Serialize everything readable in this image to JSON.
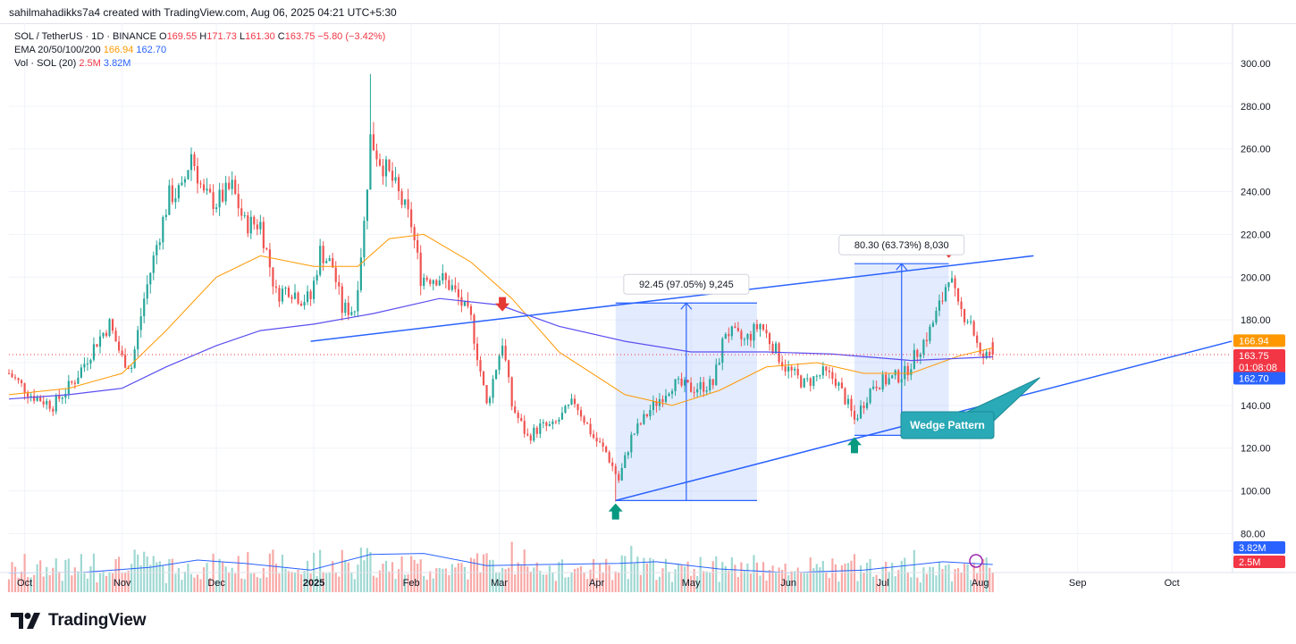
{
  "header": {
    "created_by": "sahilmahadikks7a4 created with TradingView.com, Aug 06, 2025 04:21 UTC+5:30"
  },
  "legend": {
    "symbol": "SOL / TetherUS · 1D · BINANCE",
    "open_label": "O",
    "open": "169.55",
    "high_label": "H",
    "high": "171.73",
    "low_label": "L",
    "low": "161.30",
    "close_label": "C",
    "close": "163.75",
    "change": "−5.80 (−3.42%)",
    "ema_label": "EMA 20/50/100/200",
    "ema_50": "166.94",
    "ema_200": "162.70",
    "vol_label": "Vol · SOL (20)",
    "vol_value": "2.5M",
    "vol_ma": "3.82M"
  },
  "badges": {
    "ema50": "166.94",
    "price": "163.75",
    "countdown": "01:08:08",
    "ema200": "162.70",
    "vol_ma": "3.82M",
    "vol": "2.5M"
  },
  "annotations": {
    "measure1": "92.45 (97.05%) 9,245",
    "measure2": "80.30 (63.73%) 8,030",
    "pattern_label": "Wedge Pattern"
  },
  "footer": {
    "brand": "TradingView"
  },
  "colors": {
    "up": "#26a69a",
    "down": "#ef5350",
    "ema50": "#ff9800",
    "ema200": "#5b4ff0",
    "trend": "#2962ff",
    "label_box": "#2aa9b6"
  },
  "chart_data": {
    "type": "candlestick",
    "title": "SOL / TetherUS · 1D · BINANCE",
    "y_ticks": [
      80,
      100,
      120,
      140,
      160,
      180,
      200,
      220,
      240,
      260,
      280,
      300
    ],
    "y_tick_labels": [
      "80.00",
      "100.00",
      "120.00",
      "140.00",
      "160.00",
      "180.00",
      "200.00",
      "220.00",
      "240.00",
      "260.00",
      "280.00",
      "300.00"
    ],
    "ylim": [
      71,
      305
    ],
    "x_tick_labels": [
      "Oct",
      "Nov",
      "Dec",
      "2025",
      "Feb",
      "Mar",
      "Apr",
      "May",
      "Jun",
      "Jul",
      "Aug",
      "Sep",
      "Oct"
    ],
    "x_tick_dates": [
      "2024-10-01",
      "2024-11-01",
      "2024-12-01",
      "2025-01-01",
      "2025-02-01",
      "2025-03-01",
      "2025-04-01",
      "2025-05-01",
      "2025-06-01",
      "2025-07-01",
      "2025-08-01",
      "2025-09-01",
      "2025-10-01"
    ],
    "xlim": [
      "2024-09-26",
      "2025-10-20"
    ],
    "price_path": [
      [
        "2024-09-26",
        155
      ],
      [
        "2024-10-03",
        145
      ],
      [
        "2024-10-10",
        140
      ],
      [
        "2024-10-17",
        152
      ],
      [
        "2024-10-24",
        170
      ],
      [
        "2024-10-28",
        178
      ],
      [
        "2024-11-01",
        162
      ],
      [
        "2024-11-04",
        158
      ],
      [
        "2024-11-08",
        190
      ],
      [
        "2024-11-12",
        215
      ],
      [
        "2024-11-16",
        238
      ],
      [
        "2024-11-20",
        240
      ],
      [
        "2024-11-23",
        258
      ],
      [
        "2024-11-27",
        238
      ],
      [
        "2024-12-01",
        235
      ],
      [
        "2024-12-06",
        242
      ],
      [
        "2024-12-10",
        225
      ],
      [
        "2024-12-15",
        225
      ],
      [
        "2024-12-20",
        192
      ],
      [
        "2024-12-24",
        195
      ],
      [
        "2024-12-28",
        190
      ],
      [
        "2024-12-31",
        190
      ],
      [
        "2025-01-03",
        212
      ],
      [
        "2025-01-07",
        205
      ],
      [
        "2025-01-10",
        185
      ],
      [
        "2025-01-14",
        185
      ],
      [
        "2025-01-17",
        225
      ],
      [
        "2025-01-19",
        265
      ],
      [
        "2025-01-22",
        255
      ],
      [
        "2025-01-26",
        245
      ],
      [
        "2025-02-01",
        225
      ],
      [
        "2025-02-04",
        200
      ],
      [
        "2025-02-10",
        200
      ],
      [
        "2025-02-14",
        195
      ],
      [
        "2025-02-20",
        180
      ],
      [
        "2025-02-25",
        140
      ],
      [
        "2025-03-02",
        170
      ],
      [
        "2025-03-05",
        140
      ],
      [
        "2025-03-10",
        125
      ],
      [
        "2025-03-14",
        130
      ],
      [
        "2025-03-18",
        130
      ],
      [
        "2025-03-25",
        142
      ],
      [
        "2025-03-31",
        125
      ],
      [
        "2025-04-04",
        118
      ],
      [
        "2025-04-08",
        105
      ],
      [
        "2025-04-12",
        125
      ],
      [
        "2025-04-18",
        138
      ],
      [
        "2025-04-25",
        150
      ],
      [
        "2025-05-01",
        148
      ],
      [
        "2025-05-08",
        150
      ],
      [
        "2025-05-12",
        175
      ],
      [
        "2025-05-18",
        170
      ],
      [
        "2025-05-23",
        178
      ],
      [
        "2025-05-31",
        158
      ],
      [
        "2025-06-06",
        150
      ],
      [
        "2025-06-12",
        155
      ],
      [
        "2025-06-16",
        152
      ],
      [
        "2025-06-20",
        140
      ],
      [
        "2025-06-22",
        133
      ],
      [
        "2025-06-28",
        150
      ],
      [
        "2025-07-03",
        152
      ],
      [
        "2025-07-08",
        155
      ],
      [
        "2025-07-12",
        165
      ],
      [
        "2025-07-16",
        175
      ],
      [
        "2025-07-20",
        190
      ],
      [
        "2025-07-22",
        202
      ],
      [
        "2025-07-25",
        185
      ],
      [
        "2025-07-29",
        180
      ],
      [
        "2025-08-01",
        162
      ],
      [
        "2025-08-05",
        163.75
      ]
    ],
    "last_candle": {
      "date": "2025-08-05",
      "open": 169.55,
      "high": 171.73,
      "low": 161.3,
      "close": 163.75
    },
    "highlights": [
      [
        "2025-01-19",
        295
      ],
      [
        "2025-04-07",
        95
      ]
    ],
    "series": [
      {
        "name": "EMA 50",
        "value_last": 166.94,
        "points": [
          [
            "2024-09-26",
            145
          ],
          [
            "2024-10-15",
            148
          ],
          [
            "2024-11-01",
            155
          ],
          [
            "2024-11-15",
            175
          ],
          [
            "2024-12-01",
            200
          ],
          [
            "2024-12-15",
            210
          ],
          [
            "2025-01-01",
            205
          ],
          [
            "2025-01-15",
            205
          ],
          [
            "2025-01-25",
            218
          ],
          [
            "2025-02-05",
            220
          ],
          [
            "2025-02-20",
            207
          ],
          [
            "2025-03-05",
            190
          ],
          [
            "2025-03-20",
            165
          ],
          [
            "2025-04-10",
            145
          ],
          [
            "2025-04-25",
            140
          ],
          [
            "2025-05-10",
            147
          ],
          [
            "2025-05-25",
            158
          ],
          [
            "2025-06-10",
            160
          ],
          [
            "2025-06-25",
            155
          ],
          [
            "2025-07-10",
            155
          ],
          [
            "2025-07-25",
            163
          ],
          [
            "2025-08-05",
            166.94
          ]
        ]
      },
      {
        "name": "EMA 200",
        "value_last": 162.7,
        "points": [
          [
            "2024-09-26",
            143
          ],
          [
            "2024-10-15",
            145
          ],
          [
            "2024-11-01",
            148
          ],
          [
            "2024-11-15",
            158
          ],
          [
            "2024-12-01",
            168
          ],
          [
            "2024-12-15",
            175
          ],
          [
            "2025-01-01",
            178
          ],
          [
            "2025-01-20",
            183
          ],
          [
            "2025-02-10",
            190
          ],
          [
            "2025-03-01",
            187
          ],
          [
            "2025-03-20",
            177
          ],
          [
            "2025-04-10",
            170
          ],
          [
            "2025-05-01",
            165
          ],
          [
            "2025-05-25",
            165
          ],
          [
            "2025-06-15",
            164
          ],
          [
            "2025-07-10",
            161
          ],
          [
            "2025-08-05",
            162.7
          ]
        ]
      },
      {
        "name": "Vol MA (20)",
        "value_last": "3.82M",
        "points": [
          [
            "2024-09-26",
            0.35
          ],
          [
            "2024-10-20",
            0.36
          ],
          [
            "2024-11-10",
            0.45
          ],
          [
            "2024-11-25",
            0.58
          ],
          [
            "2024-12-10",
            0.52
          ],
          [
            "2024-12-31",
            0.4
          ],
          [
            "2025-01-19",
            0.68
          ],
          [
            "2025-02-05",
            0.7
          ],
          [
            "2025-02-25",
            0.48
          ],
          [
            "2025-03-15",
            0.5
          ],
          [
            "2025-04-08",
            0.52
          ],
          [
            "2025-04-20",
            0.55
          ],
          [
            "2025-05-10",
            0.42
          ],
          [
            "2025-06-01",
            0.35
          ],
          [
            "2025-06-25",
            0.4
          ],
          [
            "2025-07-20",
            0.55
          ],
          [
            "2025-08-05",
            0.5
          ]
        ]
      }
    ],
    "trendlines": [
      {
        "from": [
          "2024-12-31",
          170
        ],
        "to": [
          "2025-08-18",
          210
        ]
      },
      {
        "from": [
          "2025-04-07",
          95.5
        ],
        "to": [
          "2025-10-20",
          170
        ]
      }
    ],
    "measures": [
      {
        "label": "92.45 (97.05%) 9,245",
        "from": [
          "2025-04-07",
          95.5
        ],
        "to": [
          "2025-05-22",
          187.9
        ]
      },
      {
        "label": "80.30 (63.73%) 8,030",
        "from": [
          "2025-06-22",
          126
        ],
        "to": [
          "2025-07-22",
          206.3
        ]
      }
    ],
    "markers": [
      {
        "type": "down",
        "date": "2025-03-02",
        "price": 184
      },
      {
        "type": "down",
        "date": "2025-07-22",
        "price": 209
      },
      {
        "type": "up",
        "date": "2025-04-07",
        "price": 95
      },
      {
        "type": "up",
        "date": "2025-06-22",
        "price": 126
      }
    ],
    "hline_current": 163.75,
    "pattern_label_anchor": [
      "2025-08-20",
      153
    ]
  }
}
